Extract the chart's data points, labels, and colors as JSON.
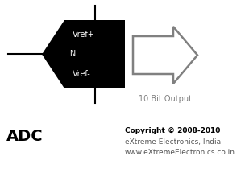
{
  "bg_color": "#ffffff",
  "adc_box_color": "#000000",
  "line_color": "#000000",
  "arrow_outline_color": "#808080",
  "in_label": "IN",
  "in_label_color": "#ffffff",
  "vref_plus_label": "Vref+",
  "vref_minus_label": "Vref-",
  "vref_label_color": "#ffffff",
  "output_label": "10 Bit Output",
  "output_label_color": "#808080",
  "adc_title": "ADC",
  "adc_title_color": "#000000",
  "copyright_line1": "Copyright © 2008-2010",
  "copyright_line2": "eXtreme Electronics, India",
  "copyright_line3": "www.eXtremeElectronics.co.in",
  "copyright_bold_color": "#000000",
  "copyright_normal_color": "#555555",
  "fig_w": 3.04,
  "fig_h": 2.2,
  "dpi": 100
}
